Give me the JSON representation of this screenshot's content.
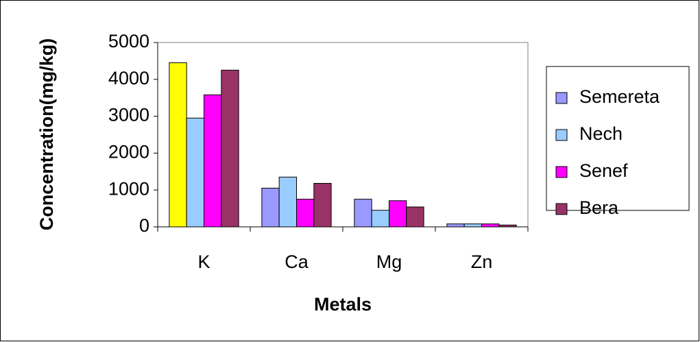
{
  "chart_data": {
    "type": "bar",
    "y_label": "Concentration(mg/kg)",
    "x_label": "Metals",
    "categories": [
      "K",
      "Ca",
      "Mg",
      "Zn"
    ],
    "series": [
      {
        "name": "Semereta",
        "color": "#9999ff",
        "colors": [
          "#ffff00",
          "#9999ff",
          "#9999ff",
          "#9999ff"
        ],
        "values": [
          4450,
          1050,
          750,
          80
        ]
      },
      {
        "name": "Nech",
        "color": "#99ccff",
        "values": [
          2950,
          1350,
          450,
          80
        ]
      },
      {
        "name": "Senef",
        "color": "#ff00ff",
        "values": [
          3580,
          750,
          710,
          80
        ]
      },
      {
        "name": "Bera",
        "color": "#993366",
        "values": [
          4250,
          1180,
          540,
          50
        ]
      }
    ],
    "ylim": [
      0,
      5000
    ],
    "yticks": [
      0,
      1000,
      2000,
      3000,
      4000,
      5000
    ],
    "grid": false,
    "legend": "right"
  }
}
